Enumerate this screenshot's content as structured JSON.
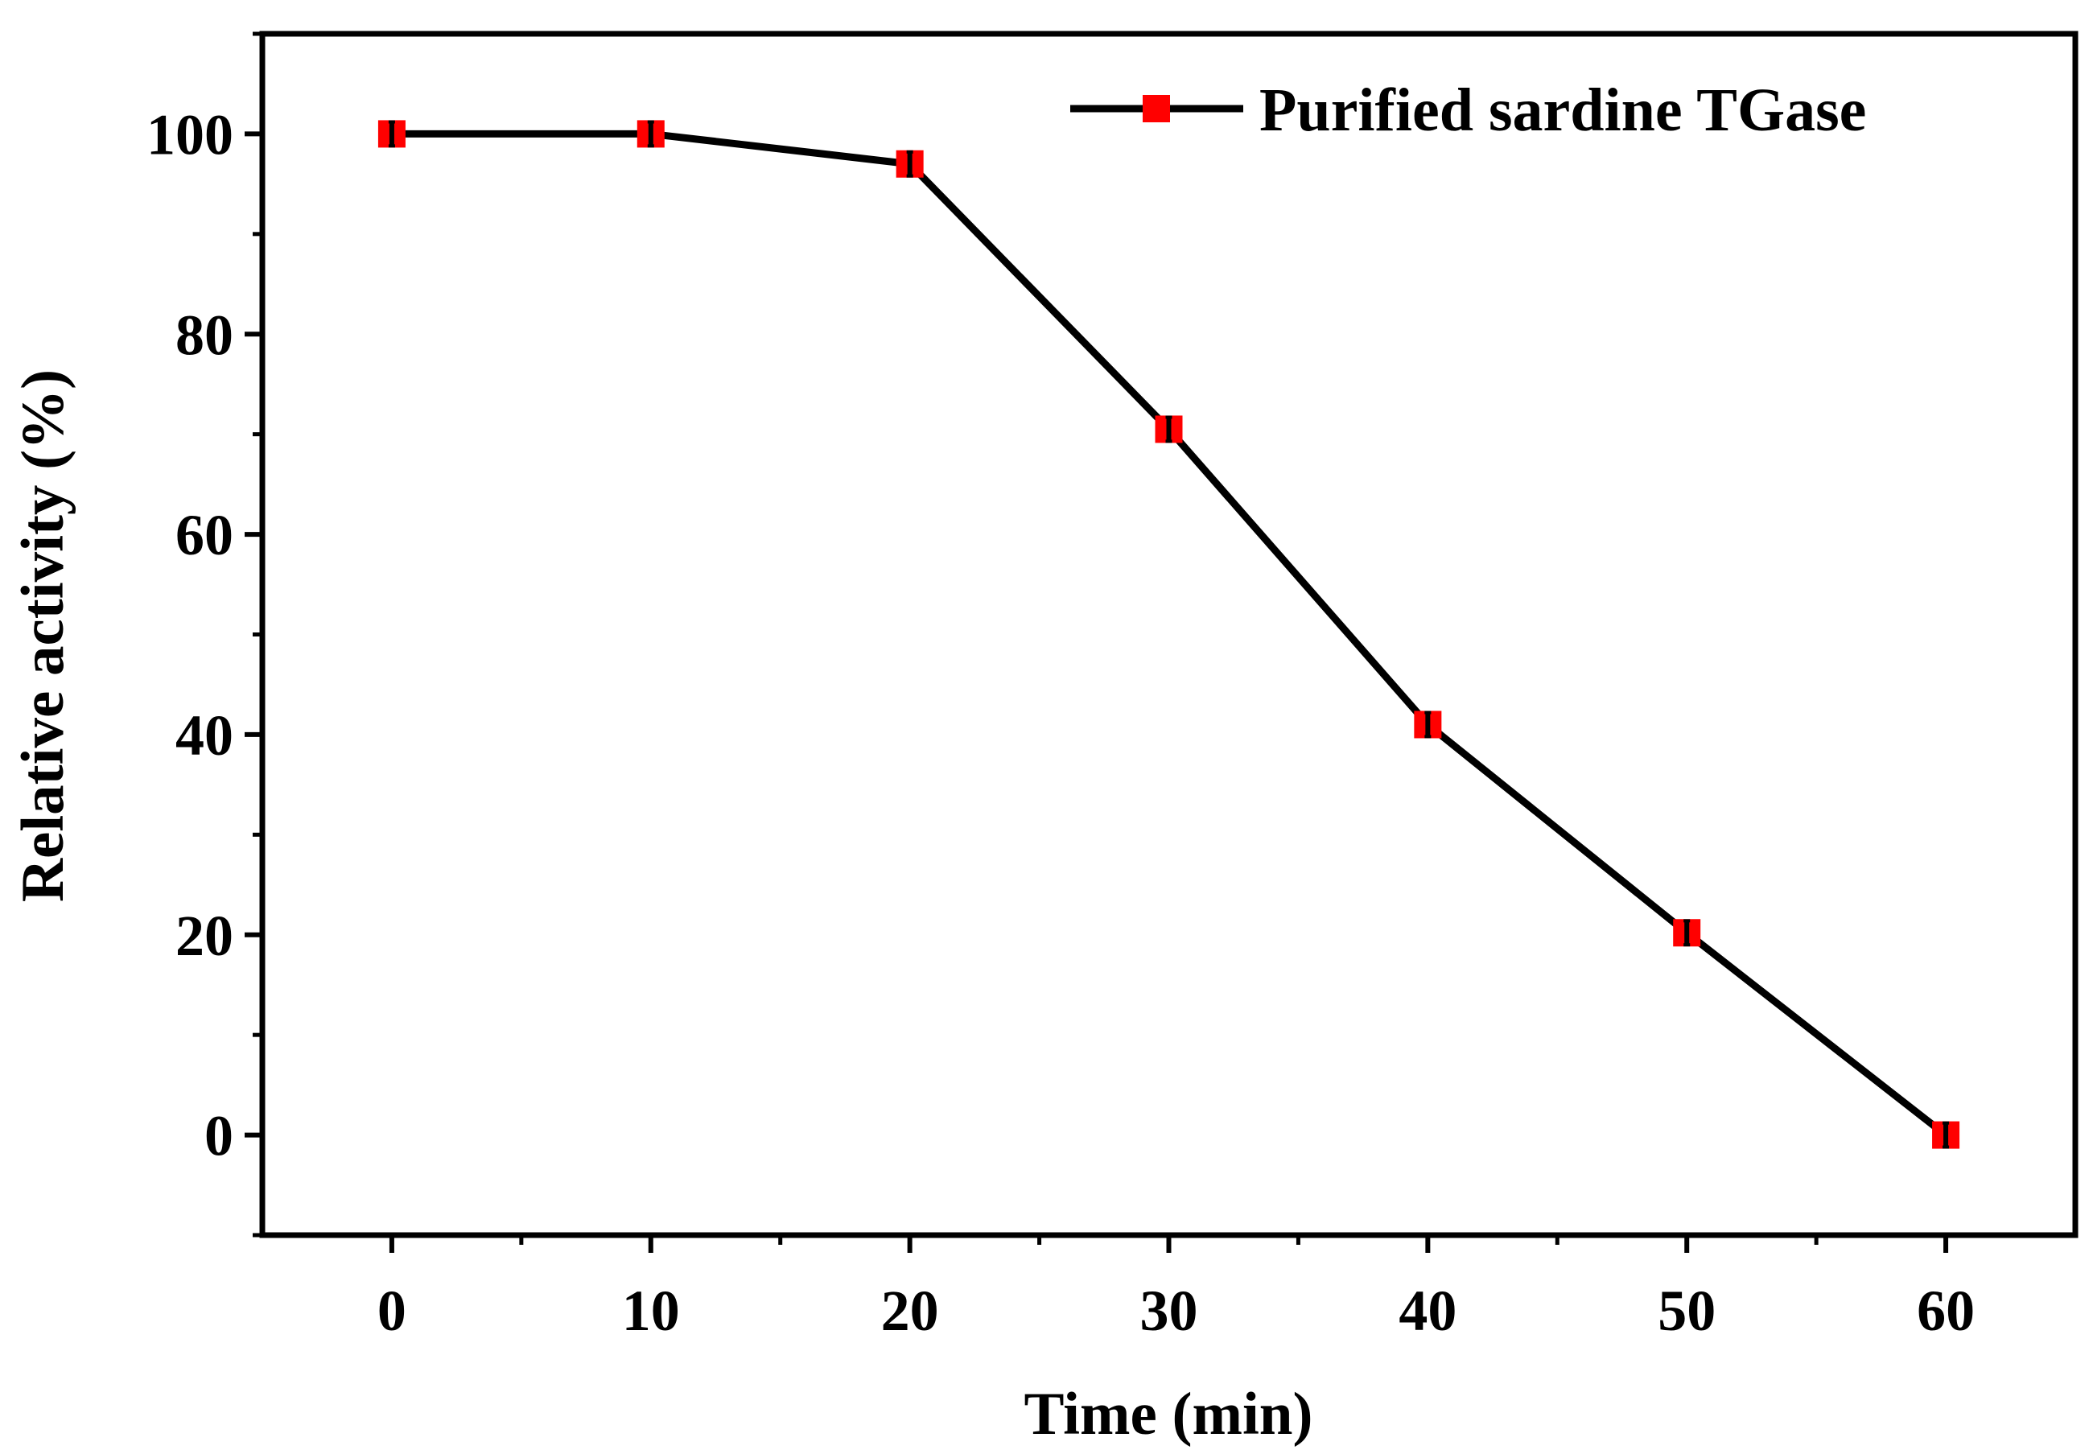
{
  "chart_data": {
    "type": "line",
    "title": "",
    "xlabel": "Time (min)",
    "ylabel": "Relative activity (%)",
    "xlim": [
      -5,
      65
    ],
    "ylim": [
      -10,
      110
    ],
    "xticks": [
      0,
      10,
      20,
      30,
      40,
      50,
      60
    ],
    "yticks": [
      0,
      20,
      40,
      60,
      80,
      100
    ],
    "x_tick_labels": [
      "0",
      "10",
      "20",
      "30",
      "40",
      "50",
      "60"
    ],
    "y_tick_labels": [
      "0",
      "20",
      "40",
      "60",
      "80",
      "100"
    ],
    "x_minor_ticks": [
      5,
      15,
      25,
      35,
      45,
      55
    ],
    "y_minor_ticks": [
      -10,
      10,
      30,
      50,
      70,
      90,
      110
    ],
    "grid": false,
    "legend_position": "top-right",
    "series": [
      {
        "name": "Purified sardine TGase",
        "x": [
          0,
          10,
          20,
          30,
          40,
          50,
          60
        ],
        "values": [
          100,
          100,
          97,
          70.5,
          41,
          20.2,
          0
        ],
        "errors": [
          1.2,
          1.2,
          1.2,
          1.2,
          1.2,
          1.2,
          1.2
        ],
        "line_color": "#000000",
        "marker": "square",
        "marker_color": "#ff0000"
      }
    ]
  }
}
